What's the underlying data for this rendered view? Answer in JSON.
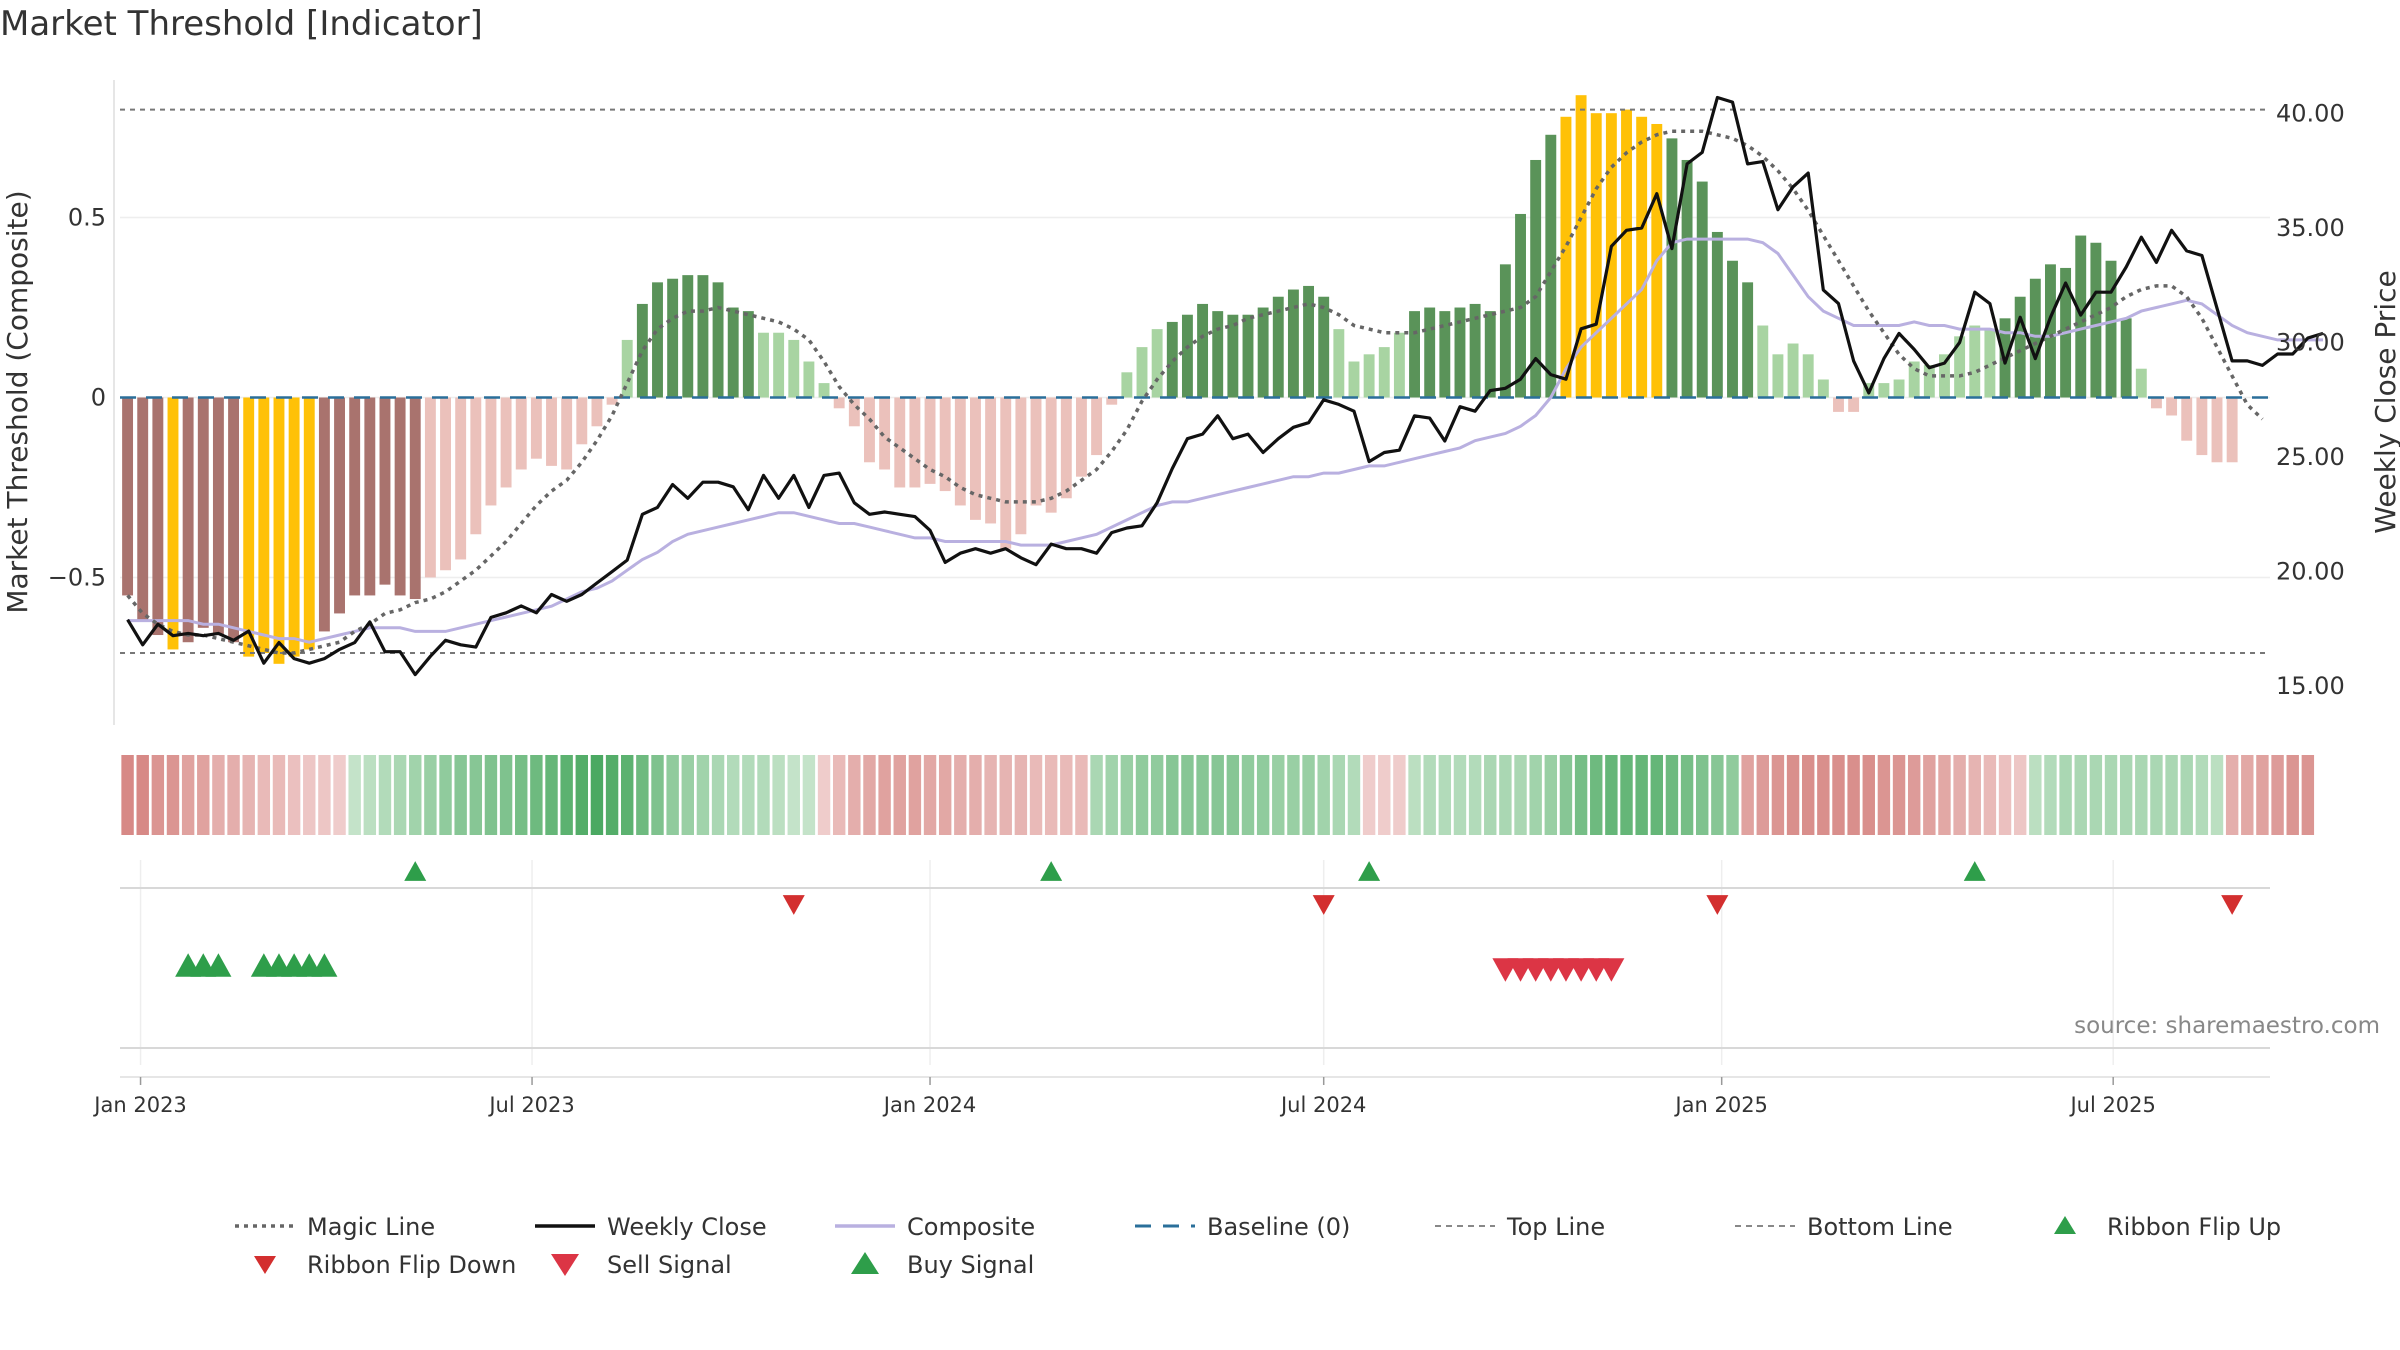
{
  "title": "Market Threshold [Indicator]",
  "source": "source: sharemaestro.com",
  "colors": {
    "overbought": "#ffc107",
    "pos_strong": "#5a9359",
    "pos_weak": "#a8d4a2",
    "neg_strong": "#a9736e",
    "neg_weak": "#ebc1bb",
    "weekly_close": "#111111",
    "composite": "#b9b0e0",
    "magic": "#666666",
    "baseline": "#2a6f9a",
    "buy": "#2e9e4a",
    "sell": "#dc3545",
    "flip_down": "#d32f2f"
  },
  "chart_data": {
    "type": "bar",
    "title": "Market Threshold [Indicator]",
    "ylabel_left": "Market Threshold (Composite)",
    "ylabel_right": "Weekly Close Price",
    "y_left_ticks": [
      {
        "v": 0.5,
        "label": "0.5"
      },
      {
        "v": 0,
        "label": "0"
      },
      {
        "v": -0.5,
        "label": "−0.5"
      }
    ],
    "y_right_ticks": [
      {
        "v": 40,
        "label": "40.00"
      },
      {
        "v": 35,
        "label": "35.00"
      },
      {
        "v": 30,
        "label": "30.00"
      },
      {
        "v": 25,
        "label": "25.00"
      },
      {
        "v": 20,
        "label": "20.00"
      },
      {
        "v": 15,
        "label": "15.00"
      }
    ],
    "ylim_left": [
      -0.91,
      0.91
    ],
    "ylim_right": [
      13.3,
      41.9
    ],
    "top_line": 0.8,
    "bottom_line": -0.71,
    "start_date": "2022-12-26",
    "weeks": 142,
    "x_ticks": [
      "Jan 2023",
      "Jul 2023",
      "Jan 2024",
      "Jul 2024",
      "Jan 2025",
      "Jul 2025"
    ],
    "x_tick_dates": [
      "2023-01-01",
      "2023-07-01",
      "2024-01-01",
      "2024-07-01",
      "2025-01-01",
      "2025-07-01"
    ],
    "composite_bars": [
      -0.55,
      -0.62,
      -0.66,
      -0.7,
      -0.68,
      -0.64,
      -0.66,
      -0.68,
      -0.72,
      -0.71,
      -0.74,
      -0.72,
      -0.7,
      -0.65,
      -0.6,
      -0.55,
      -0.55,
      -0.52,
      -0.55,
      -0.56,
      -0.5,
      -0.48,
      -0.45,
      -0.38,
      -0.3,
      -0.25,
      -0.2,
      -0.17,
      -0.19,
      -0.2,
      -0.13,
      -0.08,
      -0.02,
      0.16,
      0.26,
      0.32,
      0.33,
      0.34,
      0.34,
      0.32,
      0.25,
      0.24,
      0.18,
      0.18,
      0.16,
      0.1,
      0.04,
      -0.03,
      -0.08,
      -0.18,
      -0.2,
      -0.25,
      -0.25,
      -0.24,
      -0.26,
      -0.3,
      -0.34,
      -0.35,
      -0.42,
      -0.38,
      -0.3,
      -0.32,
      -0.28,
      -0.22,
      -0.16,
      -0.02,
      0.07,
      0.14,
      0.19,
      0.21,
      0.23,
      0.26,
      0.24,
      0.23,
      0.23,
      0.25,
      0.28,
      0.3,
      0.31,
      0.28,
      0.19,
      0.1,
      0.12,
      0.14,
      0.18,
      0.24,
      0.25,
      0.24,
      0.25,
      0.26,
      0.24,
      0.37,
      0.51,
      0.66,
      0.73,
      0.78,
      0.84,
      0.79,
      0.79,
      0.8,
      0.78,
      0.76,
      0.72,
      0.66,
      0.6,
      0.46,
      0.38,
      0.32,
      0.2,
      0.12,
      0.15,
      0.12,
      0.05,
      -0.04,
      -0.04,
      0.04,
      0.04,
      0.05,
      0.1,
      0.09,
      0.12,
      0.17,
      0.2,
      0.19,
      0.22,
      0.28,
      0.33,
      0.37,
      0.36,
      0.45,
      0.43,
      0.38,
      0.22,
      0.08,
      -0.03,
      -0.05,
      -0.12,
      -0.16,
      -0.18,
      -0.18
    ],
    "weekly_close": [
      17.9,
      16.8,
      17.7,
      17.2,
      17.3,
      17.2,
      17.3,
      17.0,
      17.4,
      16.0,
      16.9,
      16.2,
      16.0,
      16.2,
      16.6,
      16.9,
      17.8,
      16.5,
      16.5,
      15.5,
      16.3,
      17.0,
      16.8,
      16.7,
      18.0,
      18.2,
      18.5,
      18.2,
      19.0,
      18.7,
      19.0,
      19.5,
      20.0,
      20.5,
      22.5,
      22.8,
      23.8,
      23.2,
      23.9,
      23.9,
      23.7,
      22.7,
      24.2,
      23.2,
      24.2,
      22.8,
      24.2,
      24.3,
      23.0,
      22.5,
      22.6,
      22.5,
      22.4,
      21.8,
      20.4,
      20.8,
      21.0,
      20.8,
      21.0,
      20.6,
      20.3,
      21.2,
      21.0,
      21.0,
      20.8,
      21.7,
      21.9,
      22.0,
      23.0,
      24.5,
      25.8,
      26.0,
      26.8,
      25.8,
      26.0,
      25.2,
      25.8,
      26.3,
      26.5,
      27.5,
      27.3,
      27.0,
      24.8,
      25.2,
      25.3,
      26.8,
      26.7,
      25.7,
      27.2,
      27.0,
      27.9,
      28.0,
      28.4,
      29.3,
      28.6,
      28.4,
      30.6,
      30.8,
      34.2,
      34.9,
      35.0,
      36.5,
      34.1,
      37.8,
      38.3,
      40.7,
      40.5,
      37.8,
      37.9,
      35.8,
      36.8,
      37.4,
      32.3,
      31.7,
      29.2,
      27.8,
      29.3,
      30.4,
      29.7,
      28.9,
      29.1,
      30.0,
      32.2,
      31.7,
      29.1,
      31.1,
      29.3,
      31.1,
      32.6,
      31.2,
      32.2,
      32.2,
      33.3,
      34.6,
      33.5,
      34.9,
      34.0,
      33.8,
      31.5,
      29.2,
      29.2,
      29.0,
      29.5,
      29.5,
      30.2,
      30.4
    ],
    "composite_line": [
      -0.62,
      -0.62,
      -0.62,
      -0.62,
      -0.62,
      -0.63,
      -0.63,
      -0.64,
      -0.65,
      -0.66,
      -0.67,
      -0.67,
      -0.68,
      -0.67,
      -0.66,
      -0.65,
      -0.64,
      -0.64,
      -0.64,
      -0.65,
      -0.65,
      -0.65,
      -0.64,
      -0.63,
      -0.62,
      -0.61,
      -0.6,
      -0.59,
      -0.58,
      -0.56,
      -0.54,
      -0.53,
      -0.51,
      -0.48,
      -0.45,
      -0.43,
      -0.4,
      -0.38,
      -0.37,
      -0.36,
      -0.35,
      -0.34,
      -0.33,
      -0.32,
      -0.32,
      -0.33,
      -0.34,
      -0.35,
      -0.35,
      -0.36,
      -0.37,
      -0.38,
      -0.39,
      -0.39,
      -0.4,
      -0.4,
      -0.4,
      -0.4,
      -0.4,
      -0.41,
      -0.41,
      -0.41,
      -0.4,
      -0.39,
      -0.38,
      -0.36,
      -0.34,
      -0.32,
      -0.3,
      -0.29,
      -0.29,
      -0.28,
      -0.27,
      -0.26,
      -0.25,
      -0.24,
      -0.23,
      -0.22,
      -0.22,
      -0.21,
      -0.21,
      -0.2,
      -0.19,
      -0.19,
      -0.18,
      -0.17,
      -0.16,
      -0.15,
      -0.14,
      -0.12,
      -0.11,
      -0.1,
      -0.08,
      -0.05,
      0.0,
      0.08,
      0.14,
      0.18,
      0.22,
      0.26,
      0.3,
      0.38,
      0.43,
      0.44,
      0.44,
      0.44,
      0.44,
      0.44,
      0.43,
      0.4,
      0.34,
      0.28,
      0.24,
      0.22,
      0.2,
      0.2,
      0.2,
      0.2,
      0.21,
      0.2,
      0.2,
      0.19,
      0.19,
      0.19,
      0.18,
      0.18,
      0.17,
      0.17,
      0.18,
      0.19,
      0.2,
      0.21,
      0.22,
      0.24,
      0.25,
      0.26,
      0.27,
      0.26,
      0.23,
      0.2,
      0.18,
      0.17,
      0.16,
      0.16,
      0.16,
      0.16
    ],
    "magic_line": [
      -0.55,
      -0.6,
      -0.63,
      -0.65,
      -0.66,
      -0.66,
      -0.67,
      -0.68,
      -0.69,
      -0.7,
      -0.71,
      -0.71,
      -0.7,
      -0.69,
      -0.68,
      -0.65,
      -0.63,
      -0.6,
      -0.59,
      -0.57,
      -0.56,
      -0.54,
      -0.51,
      -0.48,
      -0.44,
      -0.4,
      -0.35,
      -0.3,
      -0.26,
      -0.23,
      -0.18,
      -0.12,
      -0.05,
      0.04,
      0.13,
      0.19,
      0.22,
      0.24,
      0.24,
      0.25,
      0.24,
      0.23,
      0.22,
      0.21,
      0.19,
      0.16,
      0.1,
      0.03,
      -0.02,
      -0.06,
      -0.11,
      -0.14,
      -0.17,
      -0.2,
      -0.22,
      -0.25,
      -0.27,
      -0.28,
      -0.29,
      -0.29,
      -0.29,
      -0.28,
      -0.26,
      -0.23,
      -0.2,
      -0.15,
      -0.09,
      -0.01,
      0.05,
      0.1,
      0.14,
      0.17,
      0.19,
      0.2,
      0.22,
      0.23,
      0.24,
      0.25,
      0.26,
      0.25,
      0.23,
      0.2,
      0.19,
      0.18,
      0.18,
      0.18,
      0.19,
      0.2,
      0.21,
      0.22,
      0.23,
      0.24,
      0.25,
      0.28,
      0.35,
      0.42,
      0.5,
      0.58,
      0.64,
      0.68,
      0.71,
      0.73,
      0.74,
      0.74,
      0.74,
      0.73,
      0.72,
      0.7,
      0.67,
      0.63,
      0.58,
      0.52,
      0.45,
      0.38,
      0.31,
      0.24,
      0.18,
      0.12,
      0.08,
      0.06,
      0.06,
      0.06,
      0.07,
      0.09,
      0.11,
      0.13,
      0.15,
      0.17,
      0.19,
      0.21,
      0.23,
      0.25,
      0.28,
      0.3,
      0.31,
      0.31,
      0.28,
      0.22,
      0.14,
      0.06,
      -0.02,
      -0.06
    ],
    "ribbon_intensity": [
      -0.7,
      -0.7,
      -0.6,
      -0.6,
      -0.5,
      -0.5,
      -0.4,
      -0.4,
      -0.35,
      -0.3,
      -0.3,
      -0.25,
      -0.2,
      -0.2,
      -0.15,
      0.2,
      0.25,
      0.3,
      0.35,
      0.4,
      0.45,
      0.5,
      0.55,
      0.55,
      0.6,
      0.6,
      0.65,
      0.7,
      0.75,
      0.8,
      0.85,
      0.9,
      0.85,
      0.8,
      0.7,
      0.6,
      0.5,
      0.45,
      0.4,
      0.35,
      0.3,
      0.3,
      0.3,
      0.25,
      0.2,
      0.2,
      -0.15,
      -0.3,
      -0.4,
      -0.45,
      -0.5,
      -0.5,
      -0.5,
      -0.45,
      -0.45,
      -0.4,
      -0.4,
      -0.35,
      -0.35,
      -0.35,
      -0.3,
      -0.3,
      -0.3,
      -0.3,
      0.35,
      0.4,
      0.45,
      0.5,
      0.5,
      0.55,
      0.55,
      0.55,
      0.55,
      0.55,
      0.5,
      0.5,
      0.45,
      0.45,
      0.45,
      0.4,
      0.35,
      0.3,
      -0.15,
      -0.15,
      -0.15,
      0.25,
      0.3,
      0.3,
      0.3,
      0.3,
      0.35,
      0.35,
      0.35,
      0.4,
      0.45,
      0.55,
      0.65,
      0.7,
      0.75,
      0.75,
      0.75,
      0.75,
      0.7,
      0.65,
      0.6,
      0.55,
      0.5,
      -0.5,
      -0.55,
      -0.6,
      -0.65,
      -0.65,
      -0.65,
      -0.65,
      -0.65,
      -0.65,
      -0.6,
      -0.6,
      -0.55,
      -0.5,
      -0.45,
      -0.4,
      -0.35,
      -0.3,
      -0.25,
      -0.2,
      0.25,
      0.3,
      0.35,
      0.35,
      0.35,
      0.35,
      0.35,
      0.35,
      0.35,
      0.35,
      0.35,
      0.3,
      0.25,
      -0.4,
      -0.45,
      -0.5,
      -0.55,
      -0.6,
      -0.6
    ],
    "ribbon_flip_up": [
      "2023-05-08",
      "2024-02-26",
      "2024-07-22",
      "2025-04-28"
    ],
    "ribbon_flip_down": [
      "2023-10-30",
      "2024-07-01",
      "2024-12-30",
      "2025-08-25"
    ],
    "buy_signals": [
      "2023-01-23",
      "2023-01-30",
      "2023-02-06",
      "2023-02-27",
      "2023-03-06",
      "2023-03-13",
      "2023-03-20",
      "2023-03-27"
    ],
    "sell_signals": [
      "2024-09-23",
      "2024-09-30",
      "2024-10-07",
      "2024-10-14",
      "2024-10-21",
      "2024-10-28",
      "2024-11-04",
      "2024-11-11"
    ]
  },
  "legend": [
    {
      "label": "Magic Line",
      "kind": "dotted"
    },
    {
      "label": "Weekly Close",
      "kind": "solid"
    },
    {
      "label": "Composite",
      "kind": "composite"
    },
    {
      "label": "Baseline (0)",
      "kind": "dashed"
    },
    {
      "label": "Top Line",
      "kind": "thin-dash"
    },
    {
      "label": "Bottom Line",
      "kind": "thin-dash"
    },
    {
      "label": "Ribbon Flip Up",
      "kind": "tri-up-small"
    },
    {
      "label": "Ribbon Flip Down",
      "kind": "tri-down-small"
    },
    {
      "label": "Sell Signal",
      "kind": "tri-down-big"
    },
    {
      "label": "Buy Signal",
      "kind": "tri-up-big"
    }
  ]
}
